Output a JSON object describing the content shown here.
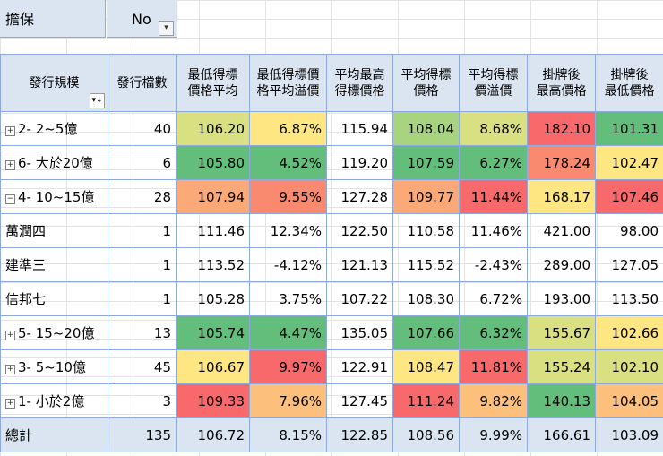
{
  "filter": {
    "label": "擔保",
    "value": "No",
    "button_icon": "filter-dropdown-icon"
  },
  "headers": [
    "發行規模",
    "發行檔數",
    "最低得標\n價格平均",
    "最低得標價\n格平均溢價",
    "平均最高\n得標價格",
    "平均得標\n價格",
    "平均得標\n價溢價",
    "掛牌後\n最高價格",
    "掛牌後\n最低價格"
  ],
  "rows": [
    {
      "label": "2- 2~5億",
      "expander": "⊞",
      "count": "40",
      "v1": "106.20",
      "v2": "6.87%",
      "v3": "115.94",
      "v4": "108.04",
      "v5": "8.68%",
      "v6": "182.10",
      "v7": "101.31",
      "colors": [
        "c-yg",
        "c-y",
        "",
        "c-lg",
        "c-yg",
        "c-r",
        "c-dg"
      ]
    },
    {
      "label": "6- 大於20億",
      "expander": "⊞",
      "count": "6",
      "v1": "105.80",
      "v2": "4.52%",
      "v3": "119.20",
      "v4": "107.59",
      "v5": "6.27%",
      "v6": "178.24",
      "v7": "102.47",
      "colors": [
        "c-dg",
        "c-dg",
        "",
        "c-dg",
        "c-dg",
        "c-rl",
        "c-y"
      ]
    },
    {
      "label": "4- 10~15億",
      "expander": "⊟",
      "count": "28",
      "v1": "107.94",
      "v2": "9.55%",
      "v3": "127.28",
      "v4": "109.77",
      "v5": "11.44%",
      "v6": "168.17",
      "v7": "107.46",
      "colors": [
        "c-do",
        "c-rl",
        "",
        "c-do",
        "c-r",
        "c-y",
        "c-r"
      ]
    },
    {
      "label": "萬潤四",
      "child": true,
      "count": "1",
      "v1": "111.46",
      "v2": "12.34%",
      "v3": "122.50",
      "v4": "110.58",
      "v5": "11.46%",
      "v6": "421.00",
      "v7": "98.00",
      "colors": [
        "",
        "",
        "",
        "",
        "",
        "",
        ""
      ]
    },
    {
      "label": "建準三",
      "child": true,
      "count": "1",
      "v1": "113.52",
      "v2": "-4.12%",
      "v3": "121.13",
      "v4": "115.52",
      "v5": "-2.43%",
      "v6": "289.00",
      "v7": "127.05",
      "colors": [
        "",
        "",
        "",
        "",
        "",
        "",
        ""
      ]
    },
    {
      "label": "信邦七",
      "child": true,
      "count": "1",
      "v1": "105.28",
      "v2": "3.75%",
      "v3": "107.22",
      "v4": "108.30",
      "v5": "6.72%",
      "v6": "193.00",
      "v7": "113.50",
      "colors": [
        "",
        "",
        "",
        "",
        "",
        "",
        ""
      ]
    },
    {
      "label": "5- 15~20億",
      "expander": "⊞",
      "count": "13",
      "v1": "105.74",
      "v2": "4.47%",
      "v3": "135.05",
      "v4": "107.66",
      "v5": "6.32%",
      "v6": "155.67",
      "v7": "102.66",
      "colors": [
        "c-dg",
        "c-dg",
        "",
        "c-dg",
        "c-dg",
        "c-yg",
        "c-y"
      ]
    },
    {
      "label": "3- 5~10億",
      "expander": "⊞",
      "count": "45",
      "v1": "106.67",
      "v2": "9.97%",
      "v3": "122.91",
      "v4": "108.47",
      "v5": "11.81%",
      "v6": "155.24",
      "v7": "102.10",
      "colors": [
        "c-y",
        "c-r",
        "",
        "c-y",
        "c-r",
        "c-yg",
        "c-yg"
      ]
    },
    {
      "label": "1- 小於2億",
      "expander": "⊞",
      "count": "3",
      "v1": "109.33",
      "v2": "7.96%",
      "v3": "127.45",
      "v4": "111.24",
      "v5": "9.82%",
      "v6": "140.13",
      "v7": "104.05",
      "colors": [
        "c-r",
        "c-o",
        "",
        "c-r",
        "c-o",
        "c-dg",
        "c-o"
      ]
    }
  ],
  "total": {
    "label": "總計",
    "count": "135",
    "v1": "106.72",
    "v2": "8.15%",
    "v3": "122.85",
    "v4": "108.56",
    "v5": "9.99%",
    "v6": "166.61",
    "v7": "103.09"
  }
}
